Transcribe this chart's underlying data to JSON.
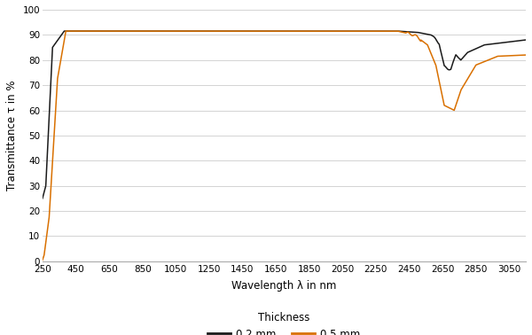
{
  "xlabel": "Wavelength λ in nm",
  "ylabel": "Transmittance τ in %",
  "xlim": [
    250,
    3150
  ],
  "ylim": [
    0,
    100
  ],
  "xticks": [
    250,
    450,
    650,
    850,
    1050,
    1250,
    1450,
    1650,
    1850,
    2050,
    2250,
    2450,
    2650,
    2850,
    3050
  ],
  "yticks": [
    0,
    10,
    20,
    30,
    40,
    50,
    60,
    70,
    80,
    90,
    100
  ],
  "color_02mm": "#1a1a1a",
  "color_05mm": "#d97000",
  "legend_label_02mm": "0.2 mm",
  "legend_label_05mm": "0.5 mm",
  "legend_title": "Thickness",
  "background_color": "#ffffff",
  "grid_color": "#cccccc",
  "linewidth": 1.1
}
